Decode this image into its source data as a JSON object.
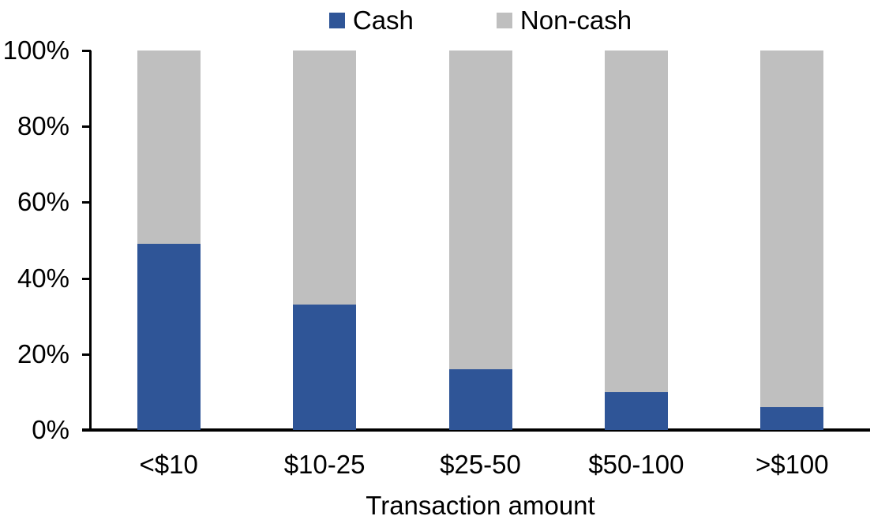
{
  "colors": {
    "cash": "#2F5597",
    "noncash": "#BFBFBF",
    "axis": "#000000",
    "text": "#000000",
    "background": "#FFFFFF"
  },
  "legend": [
    {
      "label": "Cash",
      "color": "#2F5597"
    },
    {
      "label": "Non-cash",
      "color": "#BFBFBF"
    }
  ],
  "chart_data": {
    "type": "bar",
    "stacked": true,
    "categories": [
      "<$10",
      "$10-25",
      "$25-50",
      "$50-100",
      ">$100"
    ],
    "series": [
      {
        "name": "Cash",
        "color": "#2F5597",
        "values": [
          49,
          33,
          16,
          10,
          6
        ]
      },
      {
        "name": "Non-cash",
        "color": "#BFBFBF",
        "values": [
          51,
          67,
          84,
          90,
          94
        ]
      }
    ],
    "title": "",
    "xlabel": "Transaction amount",
    "ylabel": "",
    "ylim": [
      0,
      100
    ],
    "yticks": [
      "0%",
      "20%",
      "40%",
      "60%",
      "80%",
      "100%"
    ],
    "grid": false,
    "legend_position": "top"
  }
}
